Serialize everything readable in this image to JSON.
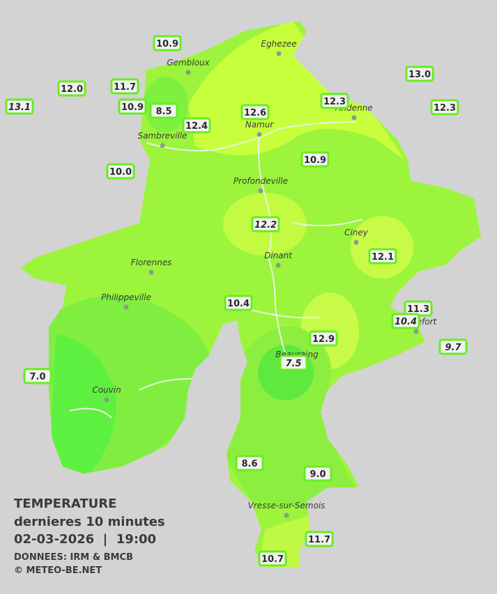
{
  "title": "TEMPERATURE",
  "subtitle": "dernieres 10 minutes",
  "datetime": "02-03-2026  |  19:00",
  "source": "DONNEES: IRM & BMCB",
  "copyright": "© METEO-BE.NET",
  "cities": [
    "Eghezee",
    "Gembloux",
    "Andenne",
    "Namur",
    "Sambreville",
    "Profondeville",
    "Ciney",
    "Dinant",
    "Florennes",
    "Philippeville",
    "Rochefort",
    "Beauraing",
    "Couvin",
    "Vresse-sur-Semois"
  ],
  "stations": [
    "10.9",
    "11.7",
    "12.0",
    "13.1",
    "10.9",
    "8.5",
    "12.4",
    "12.6",
    "12.3",
    "13.0",
    "12.3",
    "10.0",
    "10.9",
    "12.2",
    "12.1",
    "10.4",
    "11.3",
    "10.4",
    "9.7",
    "12.9",
    "7.5",
    "7.0",
    "8.6",
    "9.0",
    "11.7",
    "10.7"
  ]
}
